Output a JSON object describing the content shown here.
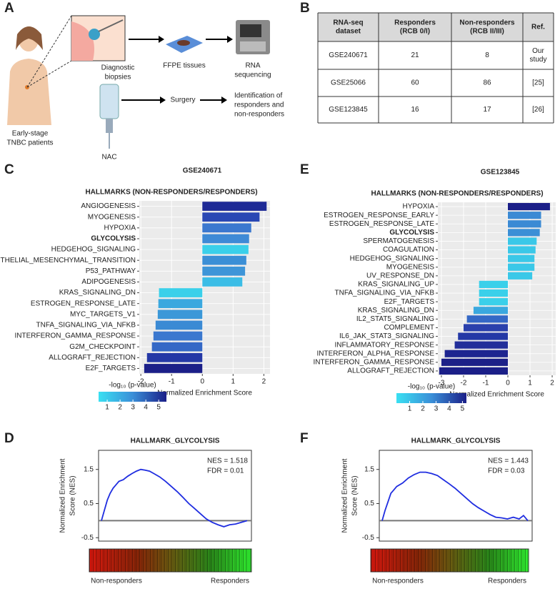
{
  "panel_labels": [
    "A",
    "B",
    "C",
    "D",
    "E",
    "F"
  ],
  "diagram": {
    "patients": [
      "Early-stage",
      "TNBC patients"
    ],
    "biopsy": [
      "Diagnostic",
      "biopsies"
    ],
    "ffpe": "FFPE tissues",
    "sequencing": [
      "RNA",
      "sequencing"
    ],
    "nac": "NAC",
    "surgery": "Surgery",
    "identification": [
      "Identification of",
      "responders and",
      "non-responders"
    ]
  },
  "table": {
    "header": [
      [
        "RNA-seq",
        "dataset"
      ],
      [
        "Responders",
        "(RCB 0/I)"
      ],
      [
        "Non-responders",
        "(RCB II/III)"
      ],
      [
        "Ref."
      ]
    ],
    "rows": [
      [
        [
          "GSE240671"
        ],
        [
          21
        ],
        [
          8
        ],
        [
          "Our",
          "study"
        ]
      ],
      [
        [
          "GSE25066"
        ],
        [
          60
        ],
        [
          86
        ],
        [
          "[25]"
        ]
      ],
      [
        [
          "GSE123845"
        ],
        [
          16
        ],
        [
          17
        ],
        [
          "[26]"
        ]
      ]
    ]
  },
  "chart_data": [
    {
      "type": "hbar",
      "title": "GSE240671",
      "subtitle": "HALLMARKS (NON-RESPONDERS/RESPONDERS)",
      "categories": [
        "ANGIOGENESIS",
        "MYOGENESIS",
        "HYPOXIA",
        "GLYCOLYSIS",
        "HEDGEHOG_SIGNALING",
        "EPITHELIAL_MESENCHYMAL_TRANSITION",
        "P53_PATHWAY",
        "ADIPOGENESIS",
        "KRAS_SIGNALING_DN",
        "ESTROGEN_RESPONSE_LATE",
        "MYC_TARGETS_V1",
        "TNFA_SIGNALING_VIA_NFKB",
        "INTERFERON_GAMMA_RESPONSE",
        "G2M_CHECKPOINT",
        "ALLOGRAFT_REJECTION",
        "E2F_TARGETS"
      ],
      "values": [
        2.09,
        1.86,
        1.59,
        1.52,
        1.5,
        1.43,
        1.39,
        1.3,
        -1.41,
        -1.43,
        -1.45,
        -1.52,
        -1.59,
        -1.64,
        -1.8,
        -1.89
      ],
      "colors": [
        "#1e2a96",
        "#2a48b4",
        "#3b78cf",
        "#3e8ad6",
        "#3ad0ea",
        "#3b8fd6",
        "#3e95d8",
        "#3bbde6",
        "#3ad0ea",
        "#3aa8df",
        "#3b98d8",
        "#3b8ad4",
        "#3b78cf",
        "#3468c6",
        "#2438a6",
        "#1b1f88"
      ],
      "highlight_index": 3,
      "highlight_color": "#e8202a",
      "xlabel": "Normalized Enrichment Score",
      "xlim": [
        -2.05,
        2.2
      ],
      "xticks": [
        -2,
        -1,
        0,
        1,
        2
      ],
      "grid": true,
      "colorbar": {
        "title": "-log₁₀ (p-value)",
        "lim": [
          0.33,
          5.6
        ],
        "ticks": [
          1,
          2,
          3,
          4,
          5
        ],
        "colors": [
          "#3ae0f2",
          "#3a8fd8",
          "#1b1f88"
        ]
      }
    },
    {
      "type": "hbar",
      "title": "GSE123845",
      "subtitle": "HALLMARKS (NON-RESPONDERS/RESPONDERS)",
      "categories": [
        "HYPOXIA",
        "ESTROGEN_RESPONSE_EARLY",
        "ESTROGEN_RESPONSE_LATE",
        "GLYCOLYSIS",
        "SPERMATOGENESIS",
        "COAGULATION",
        "HEDGEHOG_SIGNALING",
        "MYOGENESIS",
        "UV_RESPONSE_DN",
        "KRAS_SIGNALING_UP",
        "TNFA_SIGNALING_VIA_NFKB",
        "E2F_TARGETS",
        "KRAS_SIGNALING_DN",
        "IL2_STAT5_SIGNALING",
        "COMPLEMENT",
        "IL6_JAK_STAT3_SIGNALING",
        "INFLAMMATORY_RESPONSE",
        "INTERFERON_ALPHA_RESPONSE",
        "INTERFERON_GAMMA_RESPONSE",
        "ALLOGRAFT_REJECTION"
      ],
      "values": [
        1.9,
        1.5,
        1.5,
        1.44,
        1.3,
        1.25,
        1.2,
        1.2,
        1.1,
        -1.3,
        -1.3,
        -1.3,
        -1.55,
        -1.85,
        -2.0,
        -2.25,
        -2.4,
        -2.85,
        -3.0,
        -3.1
      ],
      "colors": [
        "#1b1f88",
        "#3b8ad4",
        "#3b8ad4",
        "#3b8fd6",
        "#3ac8e8",
        "#3ac8e8",
        "#3ac8e8",
        "#3ac8e8",
        "#3ac8e8",
        "#3ad0ea",
        "#3ad0ea",
        "#3ad0ea",
        "#3aa8df",
        "#3468c6",
        "#2a40ac",
        "#2438a6",
        "#222e9a",
        "#1e2590",
        "#1c2088",
        "#1b1f88"
      ],
      "highlight_index": 3,
      "highlight_color": "#e8202a",
      "xlabel": "Normalized Enrichment Score",
      "xlim": [
        -3.16,
        2.16
      ],
      "xticks": [
        -3,
        -2,
        -1,
        0,
        1,
        2
      ],
      "grid": true,
      "colorbar": {
        "title": "-log₁₀ (p-value)",
        "lim": [
          0,
          5.3
        ],
        "ticks": [
          1,
          2,
          3,
          4,
          5
        ],
        "colors": [
          "#3ae0f2",
          "#3a8fd8",
          "#1b1f88"
        ]
      }
    },
    {
      "type": "line",
      "title": "HALLMARK_GLYCOLYSIS",
      "ylabel": [
        "Normalized Enrichment",
        "Score (NES)"
      ],
      "annotations": [
        "NES = 1.518",
        "FDR = 0.01"
      ],
      "heatmap_labels": [
        "Non-responders",
        "Responders"
      ],
      "color": "#1f2de0",
      "x": [
        0,
        2,
        4,
        6,
        8,
        10,
        12,
        15,
        18,
        21,
        24,
        27,
        30,
        33,
        36,
        40,
        44,
        48,
        52,
        56,
        60,
        64,
        68,
        72,
        76,
        80,
        84,
        88,
        92,
        96,
        100
      ],
      "y": [
        0,
        0.3,
        0.6,
        0.8,
        0.95,
        1.05,
        1.15,
        1.2,
        1.3,
        1.38,
        1.45,
        1.5,
        1.48,
        1.45,
        1.38,
        1.28,
        1.15,
        1.0,
        0.85,
        0.68,
        0.5,
        0.35,
        0.2,
        0.05,
        -0.05,
        -0.12,
        -0.18,
        -0.12,
        -0.1,
        -0.05,
        0
      ],
      "xlim": [
        0,
        100
      ],
      "ylim": [
        -0.6,
        2.06
      ],
      "yticks": [
        -0.5,
        0.5,
        1.5
      ]
    },
    {
      "type": "line",
      "title": "HALLMARK_GLYCOLYSIS",
      "ylabel": [
        "Normalized Enrichment",
        "Score (NES)"
      ],
      "annotations": [
        "NES = 1.443",
        "FDR = 0.03"
      ],
      "heatmap_labels": [
        "Non-responders",
        "Responders"
      ],
      "color": "#1f2de0",
      "x": [
        0,
        2,
        4,
        6,
        8,
        10,
        14,
        18,
        22,
        26,
        30,
        34,
        38,
        42,
        46,
        50,
        54,
        58,
        62,
        66,
        70,
        74,
        78,
        82,
        86,
        90,
        94,
        97,
        100
      ],
      "y": [
        0,
        0.3,
        0.55,
        0.8,
        0.9,
        1.0,
        1.1,
        1.25,
        1.35,
        1.42,
        1.42,
        1.38,
        1.32,
        1.2,
        1.08,
        0.95,
        0.8,
        0.65,
        0.5,
        0.38,
        0.28,
        0.18,
        0.1,
        0.08,
        0.05,
        0.1,
        0.05,
        0.15,
        0
      ],
      "xlim": [
        0,
        100
      ],
      "ylim": [
        -0.6,
        2.06
      ],
      "yticks": [
        -0.5,
        0.5,
        1.5
      ]
    }
  ]
}
